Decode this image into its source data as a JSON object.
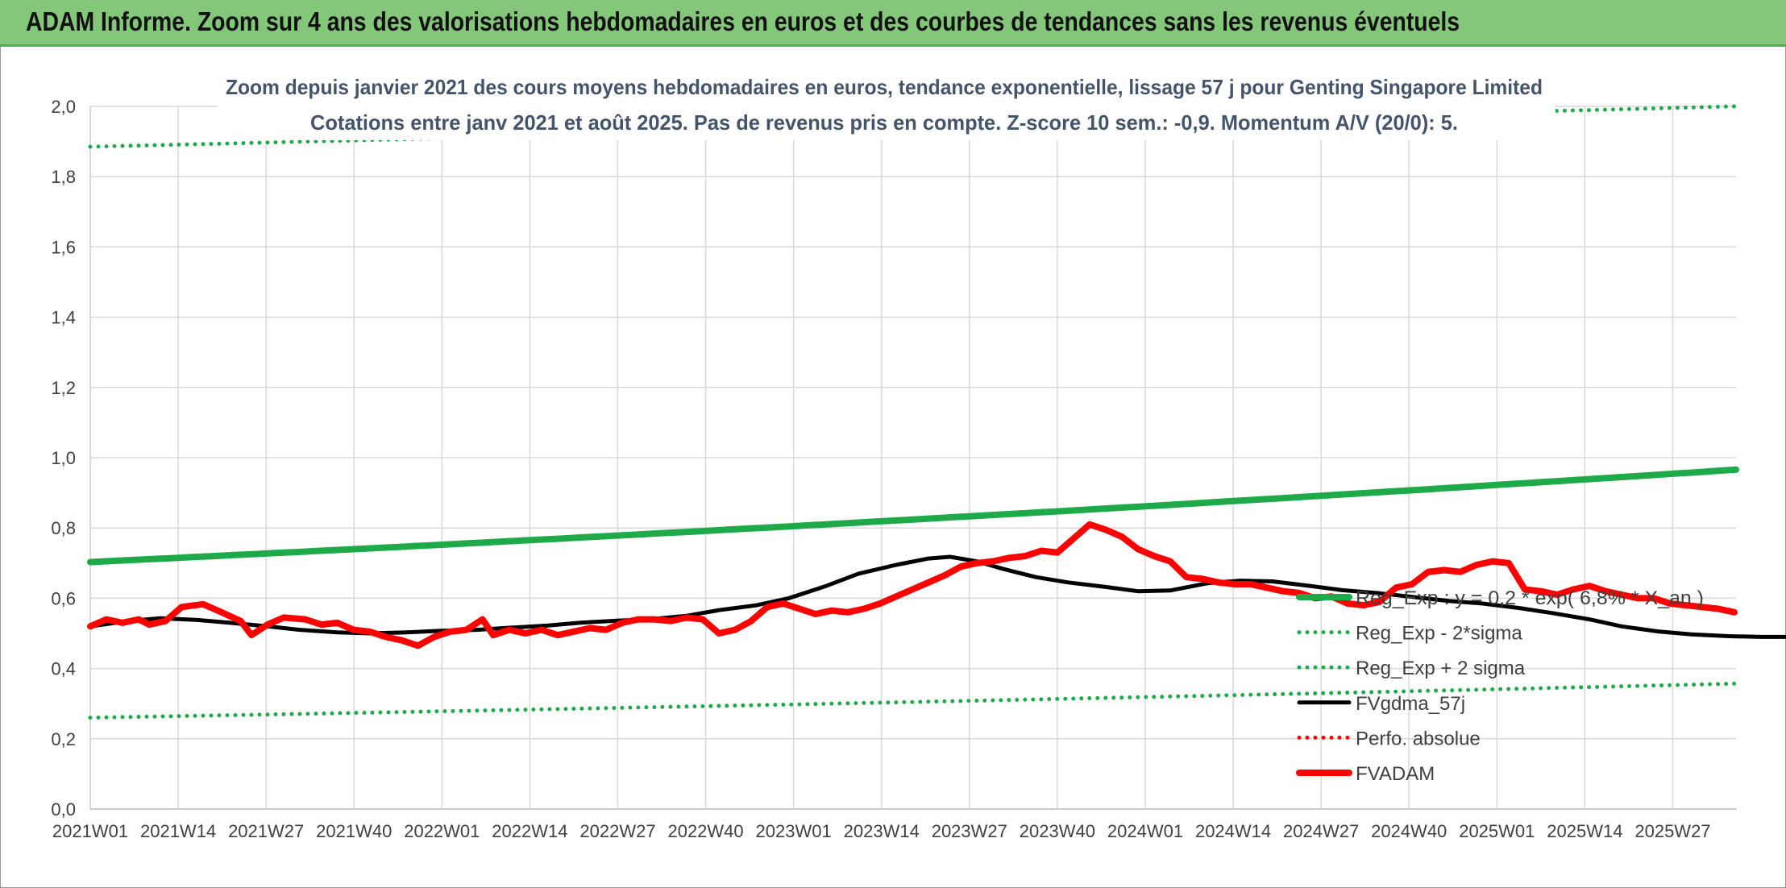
{
  "header": {
    "title": "ADAM Informe. Zoom sur 4 ans des valorisations hebdomadaires en euros et des courbes de tendances sans les revenus éventuels"
  },
  "colors": {
    "header_bg": "#84c77a",
    "trend": "#1faa4a",
    "fvgdma": "#000000",
    "fvadam": "#ff0000",
    "perfo": "#ff0000",
    "grid": "#d9d9d9"
  },
  "chart_data": {
    "type": "line",
    "title": "Zoom depuis janvier 2021 des cours moyens hebdomadaires en euros, tendance exponentielle, lissage 57 j pour Genting Singapore Limited",
    "subtitle": "Cotations entre janv 2021 et août 2025. Pas de revenus pris en compte. Z-score 10 sem.: -0,9. Momentum A/V (20/0): 5.",
    "xlabel": "",
    "ylabel": "",
    "ylim": [
      0,
      2
    ],
    "yticks": [
      "0,0",
      "0,2",
      "0,4",
      "0,6",
      "0,8",
      "1,0",
      "1,2",
      "1,4",
      "1,6",
      "1,8",
      "2,0"
    ],
    "x_tick_labels": [
      "2021W01",
      "2021W14",
      "2021W27",
      "2021W40",
      "2022W01",
      "2022W14",
      "2022W27",
      "2022W40",
      "2023W01",
      "2023W14",
      "2023W27",
      "2023W40",
      "2024W01",
      "2024W14",
      "2024W27",
      "2024W40",
      "2025W01",
      "2025W14",
      "2025W27"
    ],
    "x_weeks_total": 243,
    "grid": true,
    "legend_position": "right",
    "series": [
      {
        "name": "Reg_Exp : y = 0,2 * exp( 6,8% *  X_an )",
        "style": "solid-thick",
        "color": "#1faa4a",
        "exp_start": 0.703,
        "exp_end": 0.966
      },
      {
        "name": "Reg_Exp - 2*sigma",
        "style": "dotted",
        "color": "#1faa4a",
        "exp_start": 0.26,
        "exp_end": 0.357
      },
      {
        "name": "Reg_Exp + 2 sigma",
        "style": "dotted",
        "color": "#1faa4a",
        "exp_start": 1.885,
        "exp_end": 2.0
      },
      {
        "name": "FVgdma_57j",
        "style": "solid",
        "color": "#000000",
        "points": [
          [
            0,
            0.52
          ],
          [
            7,
            0.535
          ],
          [
            13,
            0.543
          ],
          [
            20,
            0.538
          ],
          [
            26,
            0.53
          ],
          [
            33,
            0.52
          ],
          [
            39,
            0.51
          ],
          [
            46,
            0.503
          ],
          [
            52,
            0.5
          ],
          [
            59,
            0.503
          ],
          [
            65,
            0.507
          ],
          [
            72,
            0.51
          ],
          [
            78,
            0.516
          ],
          [
            85,
            0.522
          ],
          [
            91,
            0.53
          ],
          [
            98,
            0.536
          ],
          [
            104,
            0.54
          ],
          [
            111,
            0.55
          ],
          [
            117,
            0.566
          ],
          [
            124,
            0.58
          ],
          [
            130,
            0.6
          ],
          [
            137,
            0.635
          ],
          [
            143,
            0.67
          ],
          [
            150,
            0.695
          ],
          [
            156,
            0.713
          ],
          [
            160,
            0.718
          ],
          [
            165,
            0.705
          ],
          [
            170,
            0.683
          ],
          [
            176,
            0.66
          ],
          [
            182,
            0.645
          ],
          [
            189,
            0.632
          ],
          [
            195,
            0.62
          ],
          [
            201,
            0.622
          ],
          [
            208,
            0.643
          ],
          [
            214,
            0.65
          ],
          [
            220,
            0.648
          ],
          [
            227,
            0.635
          ],
          [
            233,
            0.623
          ],
          [
            240,
            0.614
          ],
          [
            246,
            0.604
          ],
          [
            253,
            0.592
          ],
          [
            259,
            0.585
          ],
          [
            266,
            0.572
          ],
          [
            272,
            0.558
          ],
          [
            279,
            0.54
          ],
          [
            285,
            0.52
          ],
          [
            292,
            0.505
          ],
          [
            298,
            0.497
          ],
          [
            305,
            0.492
          ],
          [
            311,
            0.49
          ],
          [
            318,
            0.49
          ]
        ]
      },
      {
        "name": "Perfo. absolue",
        "style": "dotted",
        "color": "#ff0000",
        "points": []
      },
      {
        "name": "FVADAM",
        "style": "solid-thick",
        "color": "#ff0000",
        "points": [
          [
            0,
            0.52
          ],
          [
            3,
            0.54
          ],
          [
            6,
            0.53
          ],
          [
            9,
            0.54
          ],
          [
            11,
            0.525
          ],
          [
            14,
            0.535
          ],
          [
            17,
            0.575
          ],
          [
            21,
            0.583
          ],
          [
            24,
            0.563
          ],
          [
            28,
            0.535
          ],
          [
            30,
            0.495
          ],
          [
            33,
            0.525
          ],
          [
            36,
            0.545
          ],
          [
            40,
            0.54
          ],
          [
            43,
            0.525
          ],
          [
            46,
            0.53
          ],
          [
            49,
            0.51
          ],
          [
            52,
            0.505
          ],
          [
            55,
            0.49
          ],
          [
            58,
            0.48
          ],
          [
            61,
            0.465
          ],
          [
            64,
            0.49
          ],
          [
            67,
            0.505
          ],
          [
            70,
            0.51
          ],
          [
            73,
            0.54
          ],
          [
            75,
            0.495
          ],
          [
            78,
            0.51
          ],
          [
            81,
            0.5
          ],
          [
            84,
            0.51
          ],
          [
            87,
            0.495
          ],
          [
            90,
            0.505
          ],
          [
            93,
            0.515
          ],
          [
            96,
            0.51
          ],
          [
            99,
            0.53
          ],
          [
            102,
            0.54
          ],
          [
            105,
            0.54
          ],
          [
            108,
            0.535
          ],
          [
            111,
            0.545
          ],
          [
            114,
            0.54
          ],
          [
            117,
            0.5
          ],
          [
            120,
            0.51
          ],
          [
            123,
            0.535
          ],
          [
            126,
            0.575
          ],
          [
            129,
            0.585
          ],
          [
            132,
            0.57
          ],
          [
            135,
            0.555
          ],
          [
            138,
            0.565
          ],
          [
            141,
            0.56
          ],
          [
            144,
            0.57
          ],
          [
            147,
            0.585
          ],
          [
            150,
            0.605
          ],
          [
            153,
            0.625
          ],
          [
            156,
            0.645
          ],
          [
            159,
            0.665
          ],
          [
            162,
            0.69
          ],
          [
            165,
            0.7
          ],
          [
            168,
            0.705
          ],
          [
            171,
            0.715
          ],
          [
            174,
            0.72
          ],
          [
            177,
            0.735
          ],
          [
            180,
            0.73
          ],
          [
            183,
            0.77
          ],
          [
            186,
            0.81
          ],
          [
            189,
            0.795
          ],
          [
            192,
            0.775
          ],
          [
            195,
            0.74
          ],
          [
            198,
            0.72
          ],
          [
            201,
            0.705
          ],
          [
            204,
            0.66
          ],
          [
            207,
            0.655
          ],
          [
            210,
            0.645
          ],
          [
            213,
            0.64
          ],
          [
            216,
            0.64
          ],
          [
            219,
            0.63
          ],
          [
            222,
            0.62
          ],
          [
            225,
            0.615
          ],
          [
            228,
            0.6
          ],
          [
            231,
            0.605
          ],
          [
            234,
            0.585
          ],
          [
            237,
            0.58
          ],
          [
            240,
            0.59
          ],
          [
            243,
            0.63
          ],
          [
            246,
            0.64
          ],
          [
            249,
            0.675
          ],
          [
            252,
            0.68
          ],
          [
            255,
            0.675
          ],
          [
            258,
            0.695
          ],
          [
            261,
            0.705
          ],
          [
            264,
            0.7
          ],
          [
            267,
            0.625
          ],
          [
            270,
            0.62
          ],
          [
            273,
            0.61
          ],
          [
            276,
            0.625
          ],
          [
            279,
            0.635
          ],
          [
            282,
            0.62
          ],
          [
            285,
            0.61
          ],
          [
            288,
            0.6
          ],
          [
            291,
            0.6
          ],
          [
            294,
            0.585
          ],
          [
            297,
            0.58
          ],
          [
            300,
            0.575
          ],
          [
            303,
            0.57
          ],
          [
            306,
            0.56
          ]
        ]
      }
    ]
  }
}
